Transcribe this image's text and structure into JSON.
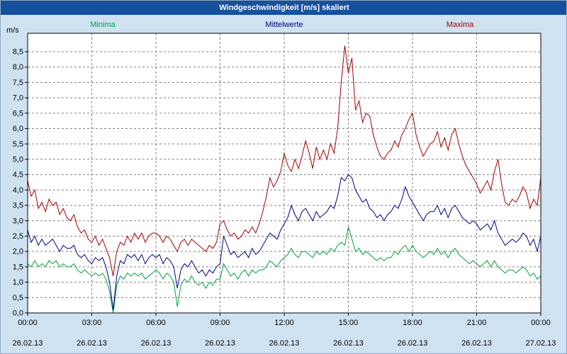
{
  "window": {
    "title": "Windgeschwindigkeit [m/s] skaliert"
  },
  "colors": {
    "background": "#cfe2f2",
    "title_bar_bg": "#17509c",
    "plot_bg": "#ffffff",
    "grid": "#808080",
    "frame": "#000000",
    "minima": "#00a03c",
    "mittelwerte": "#000080",
    "maxima": "#a00000"
  },
  "chart_data": {
    "type": "line",
    "title": "Windgeschwindigkeit [m/s] skaliert",
    "ylabel_unit": "m/s",
    "ylim": [
      0,
      9.1
    ],
    "xlim_hours": [
      0,
      24
    ],
    "grid": true,
    "legend_position": "top",
    "sample_interval_minutes": 10,
    "y_tick_values": [
      0,
      0.5,
      1,
      1.5,
      2,
      2.5,
      3,
      3.5,
      4,
      4.5,
      5,
      5.5,
      6,
      6.5,
      7,
      7.5,
      8,
      8.5
    ],
    "y_tick_labels": [
      "0,0",
      "0,5",
      "1,0",
      "1,5",
      "2,0",
      "2,5",
      "3,0",
      "3,5",
      "4,0",
      "4,5",
      "5,0",
      "5,5",
      "6,0",
      "6,5",
      "7,0",
      "7,5",
      "8,0",
      "8,5"
    ],
    "x_ticks": [
      {
        "hour": 0,
        "time": "00:00",
        "date": "26.02.13"
      },
      {
        "hour": 3,
        "time": "03:00",
        "date": "26.02.13"
      },
      {
        "hour": 6,
        "time": "06:00",
        "date": "26.02.13"
      },
      {
        "hour": 9,
        "time": "09:00",
        "date": "26.02.13"
      },
      {
        "hour": 12,
        "time": "12:00",
        "date": "26.02.13"
      },
      {
        "hour": 15,
        "time": "15:00",
        "date": "26.02.13"
      },
      {
        "hour": 18,
        "time": "18:00",
        "date": "26.02.13"
      },
      {
        "hour": 21,
        "time": "21:00",
        "date": "26.02.13"
      },
      {
        "hour": 24,
        "time": "00:00",
        "date": "27.02.13"
      }
    ],
    "series": [
      {
        "name": "Minima",
        "color": "#00a03c",
        "values": [
          1.6,
          1.5,
          1.7,
          1.5,
          1.6,
          1.5,
          1.7,
          1.6,
          1.7,
          1.5,
          1.6,
          1.5,
          1.5,
          1.6,
          1.4,
          1.3,
          1.4,
          1.3,
          1.2,
          1.3,
          1.2,
          1.3,
          1.1,
          0.7,
          0.0,
          0.9,
          1.2,
          1.1,
          1.3,
          1.2,
          1.3,
          1.2,
          1.3,
          1.1,
          1.2,
          1.3,
          1.4,
          1.3,
          1.1,
          1.3,
          1.2,
          1.0,
          0.2,
          0.9,
          1.1,
          1.0,
          1.2,
          1.0,
          0.9,
          1.0,
          0.8,
          1.0,
          0.9,
          1.1,
          1.1,
          1.6,
          1.4,
          1.2,
          1.3,
          1.1,
          1.3,
          1.4,
          1.2,
          1.4,
          1.3,
          1.4,
          1.4,
          1.5,
          1.7,
          1.6,
          1.5,
          1.7,
          1.8,
          1.9,
          2.1,
          1.9,
          1.8,
          2.0,
          2.0,
          1.9,
          1.8,
          2.0,
          1.9,
          2.0,
          1.9,
          2.1,
          2.0,
          2.2,
          2.3,
          2.2,
          2.8,
          2.4,
          2.0,
          2.1,
          1.9,
          2.0,
          1.9,
          1.8,
          1.7,
          1.8,
          1.7,
          1.8,
          1.8,
          2.0,
          1.9,
          2.1,
          2.2,
          2.0,
          2.2,
          2.0,
          1.9,
          1.8,
          1.9,
          2.0,
          1.9,
          2.1,
          1.9,
          2.0,
          1.8,
          2.0,
          2.1,
          1.9,
          1.8,
          1.7,
          1.6,
          1.7,
          1.6,
          1.5,
          1.6,
          1.7,
          1.5,
          1.7,
          1.5,
          1.4,
          1.3,
          1.4,
          1.4,
          1.3,
          1.4,
          1.5,
          1.4,
          1.2,
          1.3,
          1.1,
          1.2
        ]
      },
      {
        "name": "Mittelwerte",
        "color": "#000080",
        "values": [
          2.7,
          2.3,
          2.5,
          2.2,
          2.4,
          2.2,
          2.3,
          2.4,
          2.2,
          2.0,
          2.2,
          2.1,
          2.1,
          2.2,
          1.9,
          1.8,
          1.9,
          1.7,
          1.6,
          1.8,
          1.7,
          1.8,
          1.5,
          1.0,
          0.1,
          1.2,
          1.7,
          1.6,
          1.9,
          1.8,
          1.9,
          1.7,
          1.9,
          1.6,
          1.8,
          1.9,
          1.8,
          1.9,
          1.6,
          1.8,
          1.7,
          1.5,
          0.8,
          1.4,
          1.6,
          1.5,
          1.7,
          1.5,
          1.3,
          1.4,
          1.2,
          1.4,
          1.3,
          1.5,
          1.6,
          2.5,
          2.2,
          1.9,
          2.0,
          1.8,
          1.9,
          2.0,
          1.8,
          2.1,
          1.9,
          2.0,
          2.2,
          2.4,
          2.6,
          2.5,
          2.4,
          2.7,
          2.9,
          3.1,
          3.5,
          3.2,
          3.0,
          3.3,
          3.4,
          3.2,
          3.0,
          3.3,
          3.1,
          3.2,
          3.3,
          3.5,
          3.4,
          3.8,
          4.4,
          4.3,
          4.5,
          4.4,
          4.0,
          3.8,
          3.6,
          3.7,
          3.4,
          3.3,
          3.1,
          3.2,
          3.0,
          3.2,
          3.3,
          3.5,
          3.4,
          3.7,
          4.1,
          3.8,
          3.6,
          3.4,
          3.2,
          3.0,
          3.2,
          3.3,
          3.3,
          3.5,
          3.2,
          3.4,
          3.1,
          3.4,
          3.5,
          3.3,
          3.1,
          3.0,
          2.9,
          3.0,
          2.9,
          2.7,
          2.8,
          2.9,
          2.7,
          3.0,
          2.6,
          2.4,
          2.2,
          2.3,
          2.4,
          2.3,
          2.4,
          2.6,
          2.5,
          2.2,
          2.4,
          2.0,
          2.5
        ]
      },
      {
        "name": "Maxima",
        "color": "#a00000",
        "values": [
          4.3,
          3.8,
          4.0,
          3.4,
          3.6,
          3.3,
          3.7,
          3.5,
          3.6,
          3.2,
          3.4,
          3.1,
          3.0,
          3.2,
          2.8,
          2.6,
          2.7,
          2.4,
          2.3,
          2.5,
          2.2,
          2.4,
          2.1,
          1.8,
          1.2,
          2.0,
          2.3,
          2.2,
          2.5,
          2.3,
          2.6,
          2.4,
          2.6,
          2.3,
          2.5,
          2.6,
          2.6,
          2.5,
          2.3,
          2.5,
          2.4,
          2.2,
          2.0,
          2.3,
          2.4,
          2.2,
          2.4,
          2.3,
          2.2,
          2.1,
          2.0,
          2.2,
          2.1,
          2.3,
          2.9,
          3.0,
          2.7,
          2.5,
          2.6,
          2.4,
          2.5,
          2.7,
          2.6,
          2.8,
          2.6,
          2.9,
          3.3,
          3.8,
          4.4,
          4.1,
          4.3,
          4.6,
          5.2,
          4.8,
          4.6,
          5.0,
          4.7,
          5.1,
          5.6,
          5.2,
          4.7,
          5.4,
          5.0,
          5.3,
          5.0,
          5.5,
          5.2,
          6.0,
          7.5,
          8.7,
          7.8,
          8.3,
          6.6,
          6.9,
          6.2,
          6.5,
          6.4,
          5.8,
          5.4,
          5.1,
          5.0,
          5.2,
          5.3,
          5.6,
          5.4,
          5.8,
          6.0,
          6.3,
          6.5,
          5.8,
          5.4,
          5.1,
          5.3,
          5.5,
          5.6,
          5.9,
          5.4,
          5.7,
          5.3,
          5.8,
          6.0,
          5.5,
          5.1,
          4.8,
          4.6,
          4.4,
          4.2,
          3.9,
          4.1,
          4.3,
          4.0,
          4.6,
          5.0,
          4.2,
          3.6,
          3.5,
          3.7,
          3.6,
          3.8,
          4.1,
          3.9,
          3.4,
          3.7,
          3.5,
          4.4
        ]
      }
    ]
  }
}
